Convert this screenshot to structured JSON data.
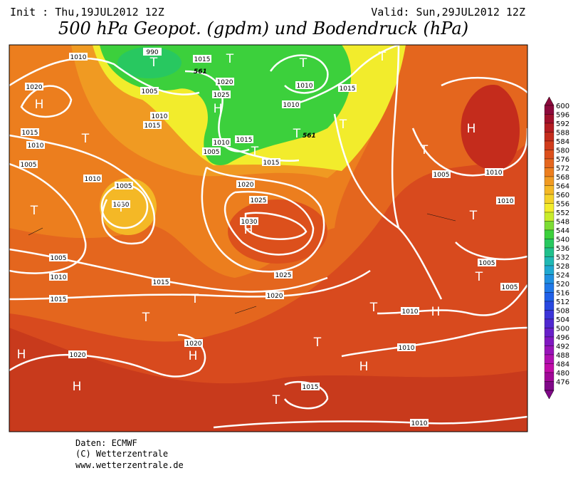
{
  "header": {
    "init": "Init : Thu,19JUL2012 12Z",
    "valid": "Valid: Sun,29JUL2012 12Z",
    "title": "500 hPa Geopot. (gpdm) und Bodendruck (hPa)"
  },
  "legend": {
    "ticks": [
      "600",
      "596",
      "592",
      "588",
      "584",
      "580",
      "576",
      "572",
      "568",
      "564",
      "560",
      "556",
      "552",
      "548",
      "544",
      "540",
      "536",
      "532",
      "528",
      "524",
      "520",
      "516",
      "512",
      "508",
      "504",
      "500",
      "496",
      "492",
      "488",
      "484",
      "480",
      "476"
    ],
    "colors": [
      "#8c0a3c",
      "#a0102c",
      "#b41c22",
      "#c42c1c",
      "#d03c1c",
      "#dc501c",
      "#e4661e",
      "#ec7e1e",
      "#f09a22",
      "#f4b826",
      "#f4d22a",
      "#f2ec2c",
      "#c8ec2c",
      "#7cdc34",
      "#3cd03c",
      "#28c860",
      "#20c08c",
      "#20b8b4",
      "#20a8d0",
      "#2090e0",
      "#2078e8",
      "#2060e8",
      "#2848e0",
      "#3c34d8",
      "#5028d0",
      "#6820c8",
      "#8018c0",
      "#9814b8",
      "#b010b0",
      "#c00ca8",
      "#a00898",
      "#800888"
    ]
  },
  "map": {
    "pressure_labels": [
      "1010",
      "990",
      "1015",
      "1020",
      "1005",
      "1010",
      "1015",
      "1020",
      "1025",
      "1010",
      "1010",
      "1015",
      "1015",
      "1010",
      "1005",
      "1010",
      "1005",
      "1030",
      "1010",
      "1005",
      "1015",
      "1015",
      "1020",
      "1025",
      "1030",
      "1005",
      "1010",
      "1015",
      "1015",
      "1025",
      "1020",
      "1005",
      "1010",
      "1010",
      "1005",
      "1010",
      "1005",
      "1020",
      "1020",
      "1010",
      "1015",
      "1010"
    ],
    "height_labels": [
      "561",
      "561"
    ],
    "centers": [
      "H",
      "T",
      "T",
      "T",
      "H",
      "T",
      "T",
      "H",
      "T",
      "T",
      "T",
      "T",
      "T",
      "H",
      "T",
      "T",
      "T",
      "T",
      "H",
      "T",
      "T",
      "H",
      "H",
      "H",
      "T",
      "H",
      "T"
    ]
  },
  "footer": [
    "Daten: ECMWF",
    "(C) Wetterzentrale",
    "www.wetterzentrale.de"
  ]
}
